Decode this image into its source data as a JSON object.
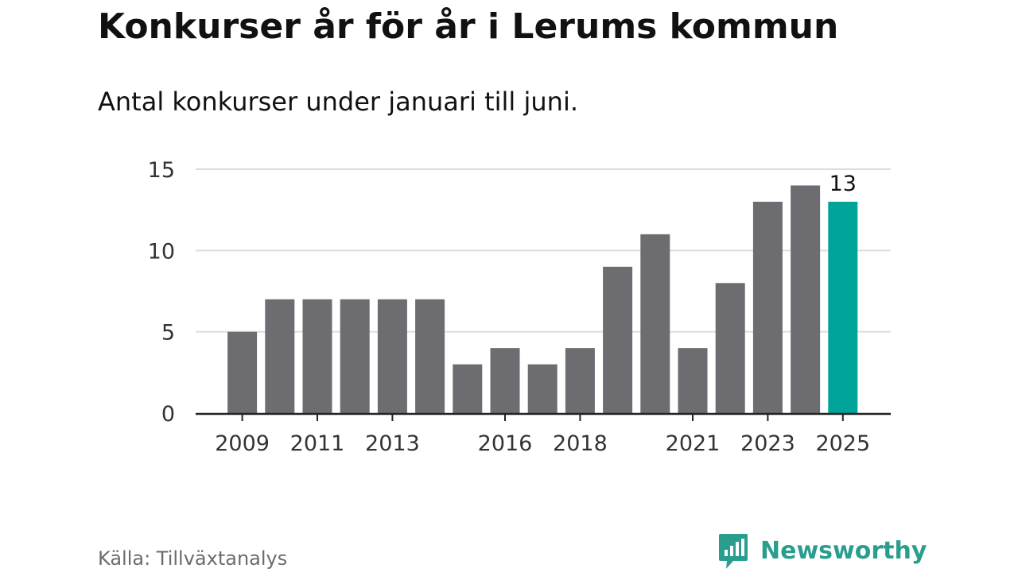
{
  "title": "Konkurser år för år i Lerums kommun",
  "subtitle": "Antal konkurser under januari till juni.",
  "source": "Källa: Tillväxtanalys",
  "brand": {
    "name": "Newsworthy",
    "color": "#2a9d8f",
    "icon": "newsworthy-logo-icon"
  },
  "colors": {
    "bar": "#6d6c71",
    "highlight": "#00a49a",
    "grid": "#dcdcdc",
    "axis": "#222222",
    "text": "#333333"
  },
  "chart_data": {
    "type": "bar",
    "title": "Konkurser år för år i Lerums kommun",
    "subtitle": "Antal konkurser under januari till juni.",
    "xlabel": "",
    "ylabel": "",
    "categories": [
      "2009",
      "2010",
      "2011",
      "2012",
      "2013",
      "2014",
      "2015",
      "2016",
      "2017",
      "2018",
      "2019",
      "2020",
      "2021",
      "2022",
      "2023",
      "2024",
      "2025"
    ],
    "values": [
      5,
      7,
      7,
      7,
      7,
      7,
      3,
      4,
      3,
      4,
      9,
      11,
      4,
      8,
      13,
      14,
      13
    ],
    "ylim": [
      0,
      15
    ],
    "yticks": [
      0,
      5,
      10,
      15
    ],
    "xtick_labels": [
      "2009",
      "2011",
      "2013",
      "2016",
      "2018",
      "2021",
      "2023",
      "2025"
    ],
    "highlight_category": "2025",
    "annotations": [
      {
        "category": "2025",
        "text": "13"
      }
    ],
    "grid": true,
    "legend": "none"
  }
}
